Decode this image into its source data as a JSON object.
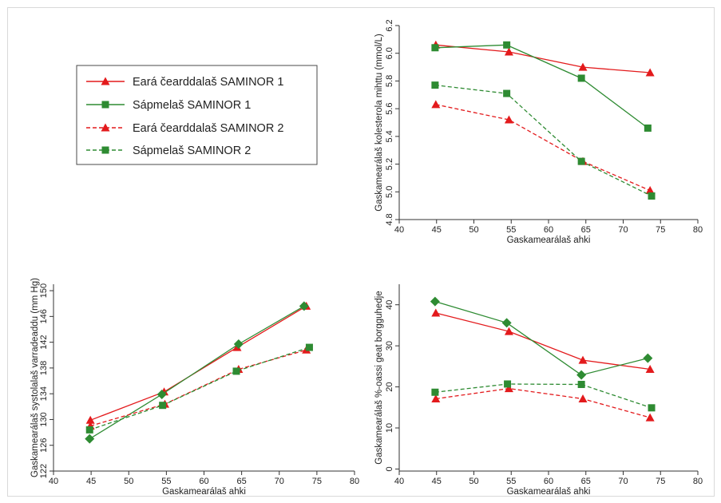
{
  "legend": {
    "placement": "top-left",
    "entries": [
      {
        "label": "Eará čearddalaš SAMINOR 1",
        "color": "#e31a1c",
        "marker": "triangle",
        "dash": "solid"
      },
      {
        "label": "Sápmelaš SAMINOR 1",
        "color": "#2e8b32",
        "marker": "square",
        "dash": "solid"
      },
      {
        "label": "Eará čearddalaš SAMINOR 2",
        "color": "#e31a1c",
        "marker": "triangle",
        "dash": "dashed"
      },
      {
        "label": "Sápmelaš SAMINOR 2",
        "color": "#2e8b32",
        "marker": "square",
        "dash": "dashed"
      }
    ]
  },
  "chart_data": [
    {
      "id": "cholesterol",
      "type": "line",
      "xlabel": "Gaskamearálaš ahki",
      "ylabel": "Gaskamearálaš kolesterola mihttu (mmol/L)",
      "xlim": [
        40,
        80
      ],
      "ylim": [
        4.8,
        6.2
      ],
      "xticks": [
        40,
        45,
        50,
        55,
        60,
        65,
        70,
        75,
        80
      ],
      "yticks": [
        4.8,
        5.0,
        5.2,
        5.4,
        5.6,
        5.8,
        6.0,
        6.2
      ],
      "ytick_labels": [
        "4.8",
        "5.0",
        "5.2",
        "5.4",
        "5.6",
        "5.8",
        "6.0",
        "6.2"
      ],
      "grid": false,
      "series": [
        {
          "name": "Eará čearddalaš SAMINOR 1",
          "color": "#e31a1c",
          "marker": "triangle",
          "dash": "solid",
          "x": [
            44.9,
            54.7,
            64.6,
            73.6
          ],
          "y": [
            6.06,
            6.01,
            5.9,
            5.86
          ]
        },
        {
          "name": "Sápmelaš SAMINOR 1",
          "color": "#2e8b32",
          "marker": "square",
          "dash": "solid",
          "x": [
            44.8,
            54.4,
            64.4,
            73.3
          ],
          "y": [
            6.04,
            6.06,
            5.82,
            5.46
          ]
        },
        {
          "name": "Eará čearddalaš SAMINOR 2",
          "color": "#e31a1c",
          "marker": "triangle",
          "dash": "dashed",
          "x": [
            44.9,
            54.7,
            64.6,
            73.6
          ],
          "y": [
            5.63,
            5.52,
            5.22,
            5.01
          ]
        },
        {
          "name": "Sápmelaš SAMINOR 2",
          "color": "#2e8b32",
          "marker": "square",
          "dash": "dashed",
          "x": [
            44.8,
            54.4,
            64.4,
            73.8
          ],
          "y": [
            5.77,
            5.71,
            5.22,
            4.97
          ]
        }
      ]
    },
    {
      "id": "systolic",
      "type": "line",
      "xlabel": "Gaskamearálaš ahki",
      "ylabel": "Gaskamearálaš systolalaš varradeaddu (mm Hg)",
      "xlim": [
        40,
        80
      ],
      "ylim": [
        122,
        151
      ],
      "xticks": [
        40,
        45,
        50,
        55,
        60,
        65,
        70,
        75,
        80
      ],
      "yticks": [
        122,
        126,
        130,
        134,
        138,
        142,
        146,
        150
      ],
      "ytick_labels": [
        "122",
        "126",
        "130",
        "134",
        "138",
        "142",
        "146",
        "150"
      ],
      "grid": false,
      "series": [
        {
          "name": "Eará čearddalaš SAMINOR 1",
          "color": "#e31a1c",
          "marker": "triangle",
          "dash": "solid",
          "x": [
            44.9,
            54.7,
            64.4,
            73.6
          ],
          "y": [
            129.9,
            134.3,
            141.2,
            147.6
          ]
        },
        {
          "name": "Sápmelaš SAMINOR 1",
          "color": "#2e8b32",
          "marker": "diamond",
          "dash": "solid",
          "x": [
            44.8,
            54.4,
            64.6,
            73.3
          ],
          "y": [
            127.0,
            133.9,
            141.7,
            147.6
          ]
        },
        {
          "name": "Eará čearddalaš SAMINOR 2",
          "color": "#e31a1c",
          "marker": "triangle",
          "dash": "dashed",
          "x": [
            44.9,
            54.8,
            64.6,
            73.6
          ],
          "y": [
            129.0,
            132.4,
            137.8,
            140.8
          ]
        },
        {
          "name": "Sápmelaš SAMINOR 2",
          "color": "#2e8b32",
          "marker": "square",
          "dash": "dashed",
          "x": [
            44.8,
            54.5,
            64.3,
            74.0
          ],
          "y": [
            128.4,
            132.2,
            137.5,
            141.2
          ]
        }
      ]
    },
    {
      "id": "percent",
      "type": "line",
      "xlabel": "Gaskamearálaš ahki",
      "ylabel": "Gaskamearálaš %-oassi geat borgguhedje",
      "xlim": [
        40,
        80
      ],
      "ylim": [
        -0.5,
        45
      ],
      "xticks": [
        40,
        45,
        50,
        55,
        60,
        65,
        70,
        75,
        80
      ],
      "yticks": [
        0,
        10,
        20,
        30,
        40
      ],
      "ytick_labels": [
        "0",
        "10",
        "20",
        "30",
        "40"
      ],
      "grid": false,
      "series": [
        {
          "name": "Eará čearddalaš SAMINOR 1",
          "color": "#e31a1c",
          "marker": "triangle",
          "dash": "solid",
          "x": [
            44.9,
            54.7,
            64.6,
            73.6
          ],
          "y": [
            38.0,
            33.5,
            26.5,
            24.3
          ]
        },
        {
          "name": "Sápmelaš SAMINOR 1",
          "color": "#2e8b32",
          "marker": "diamond",
          "dash": "solid",
          "x": [
            44.8,
            54.4,
            64.4,
            73.3
          ],
          "y": [
            40.8,
            35.6,
            22.9,
            27.0
          ]
        },
        {
          "name": "Eará čearddalaš SAMINOR 2",
          "color": "#e31a1c",
          "marker": "triangle",
          "dash": "dashed",
          "x": [
            44.9,
            54.7,
            64.6,
            73.6
          ],
          "y": [
            17.1,
            19.6,
            17.1,
            12.5
          ]
        },
        {
          "name": "Sápmelaš SAMINOR 2",
          "color": "#2e8b32",
          "marker": "square",
          "dash": "dashed",
          "x": [
            44.8,
            54.5,
            64.4,
            73.8
          ],
          "y": [
            18.7,
            20.7,
            20.6,
            14.9
          ]
        }
      ]
    }
  ]
}
